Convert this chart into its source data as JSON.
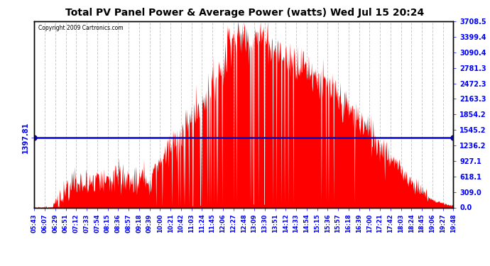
{
  "title": "Total PV Panel Power & Average Power (watts) Wed Jul 15 20:24",
  "copyright": "Copyright 2009 Cartronics.com",
  "avg_power": 1397.81,
  "ymax": 3708.5,
  "y_ticks": [
    0.0,
    309.0,
    618.1,
    927.1,
    1236.2,
    1545.2,
    1854.2,
    2163.3,
    2472.3,
    2781.3,
    3090.4,
    3399.4,
    3708.5
  ],
  "y_tick_labels": [
    "0.0",
    "309.0",
    "618.1",
    "927.1",
    "1236.2",
    "1545.2",
    "1854.2",
    "2163.3",
    "2472.3",
    "2781.3",
    "3090.4",
    "3399.4",
    "3708.5"
  ],
  "bg_color": "#ffffff",
  "fill_color": "#ff0000",
  "line_color": "#0000cc",
  "grid_color": "#cccccc",
  "title_fontsize": 11,
  "x_tick_labels": [
    "05:43",
    "06:07",
    "06:29",
    "06:51",
    "07:12",
    "07:33",
    "07:54",
    "08:15",
    "08:36",
    "08:57",
    "09:18",
    "09:39",
    "10:00",
    "10:21",
    "10:42",
    "11:03",
    "11:24",
    "11:45",
    "12:06",
    "12:27",
    "12:48",
    "13:09",
    "13:30",
    "13:51",
    "14:12",
    "14:33",
    "14:54",
    "15:15",
    "15:36",
    "15:57",
    "16:18",
    "16:39",
    "17:00",
    "17:21",
    "17:42",
    "18:03",
    "18:24",
    "18:45",
    "19:06",
    "19:27",
    "19:48"
  ]
}
